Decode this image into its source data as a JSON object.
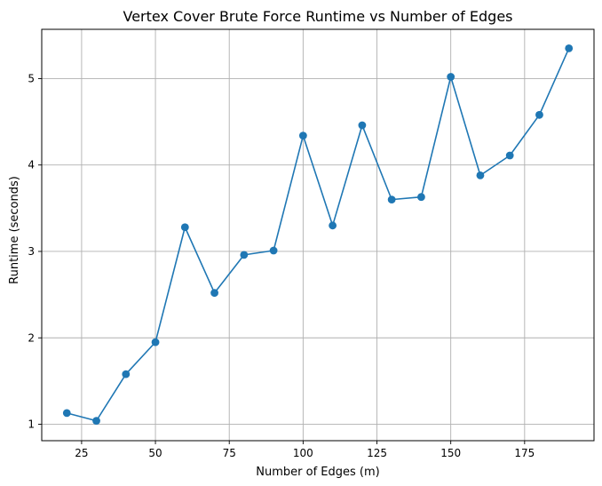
{
  "chart_data": {
    "type": "line",
    "title": "Vertex Cover Brute Force Runtime vs Number of Edges",
    "xlabel": "Number of Edges (m)",
    "ylabel": "Runtime (seconds)",
    "xlim": [
      11.5,
      198.5
    ],
    "ylim": [
      0.81,
      5.57
    ],
    "xticks": [
      25,
      50,
      75,
      100,
      125,
      150,
      175
    ],
    "yticks": [
      1,
      2,
      3,
      4,
      5
    ],
    "grid": true,
    "series": [
      {
        "color": "#1f77b4",
        "marker": "circle",
        "x": [
          20,
          30,
          40,
          50,
          60,
          70,
          80,
          90,
          100,
          110,
          120,
          130,
          140,
          150,
          160,
          170,
          180,
          190
        ],
        "y": [
          1.13,
          1.04,
          1.58,
          1.95,
          3.28,
          2.52,
          2.96,
          3.01,
          4.34,
          3.3,
          4.46,
          3.6,
          3.63,
          5.02,
          3.88,
          4.11,
          4.58,
          5.35
        ]
      }
    ]
  }
}
